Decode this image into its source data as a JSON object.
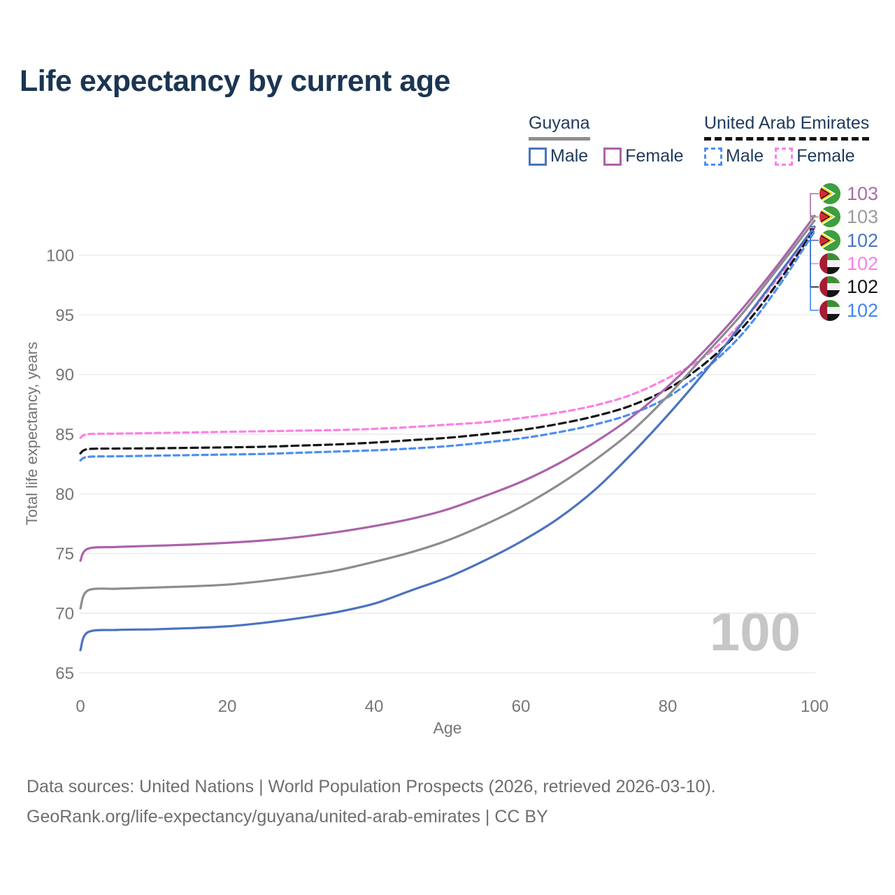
{
  "title": "Life expectancy by current age",
  "legend": {
    "guyana": {
      "label": "Guyana",
      "male_label": "Male",
      "female_label": "Female"
    },
    "uae": {
      "label": "United Arab Emirates",
      "male_label": "Male",
      "female_label": "Female"
    }
  },
  "colors": {
    "guyana_male": "#4a73c0",
    "guyana_total": "#8d8d8d",
    "guyana_female": "#ab63ab",
    "uae_male": "#4d8df5",
    "uae_total": "#141414",
    "uae_female": "#fb80e5",
    "title_text": "#1b3553",
    "legend_text": "#1e3a5c",
    "axis_text": "#757575",
    "grid_line": "#ebebeb",
    "watermark_text": "#c6c6c6"
  },
  "chart_data": {
    "type": "line",
    "title": "Life expectancy by current age",
    "xlabel": "Age",
    "ylabel": "Total life expectancy, years",
    "x_ticks": [
      0,
      20,
      40,
      60,
      80,
      100
    ],
    "y_ticks": [
      65,
      70,
      75,
      80,
      85,
      90,
      95,
      100
    ],
    "xlim": [
      0,
      100
    ],
    "ylim": [
      65,
      104
    ],
    "grid": "horizontal",
    "legend_position": "top-right",
    "ages": [
      0,
      1,
      5,
      10,
      15,
      20,
      25,
      30,
      35,
      40,
      45,
      50,
      55,
      60,
      65,
      70,
      75,
      80,
      85,
      90,
      95,
      100
    ],
    "series": [
      {
        "key": "uae_female",
        "name": "United Arab Emirates Female",
        "style": "dashed",
        "color": "#fb80e5",
        "values": [
          84.7,
          85.0,
          85.05,
          85.1,
          85.15,
          85.2,
          85.25,
          85.3,
          85.35,
          85.45,
          85.6,
          85.8,
          86.0,
          86.35,
          86.8,
          87.4,
          88.3,
          89.7,
          91.5,
          94.3,
          98.1,
          102.3
        ]
      },
      {
        "key": "uae_total",
        "name": "United Arab Emirates Both sexes",
        "style": "dashed",
        "color": "#141414",
        "values": [
          83.4,
          83.75,
          83.8,
          83.82,
          83.86,
          83.9,
          83.95,
          84.05,
          84.15,
          84.3,
          84.5,
          84.7,
          85.0,
          85.35,
          85.85,
          86.5,
          87.4,
          88.8,
          90.9,
          93.8,
          97.7,
          102.2
        ]
      },
      {
        "key": "uae_male",
        "name": "United Arab Emirates Male",
        "style": "dashed",
        "color": "#4d8df5",
        "values": [
          82.8,
          83.1,
          83.15,
          83.2,
          83.25,
          83.3,
          83.35,
          83.45,
          83.55,
          83.65,
          83.8,
          84.0,
          84.3,
          84.65,
          85.15,
          85.8,
          86.7,
          88.1,
          90.4,
          93.3,
          97.3,
          102.0
        ]
      },
      {
        "key": "guyana_male",
        "name": "Guyana Male",
        "style": "solid",
        "color": "#4a73c0",
        "values": [
          66.9,
          68.4,
          68.6,
          68.65,
          68.75,
          68.9,
          69.2,
          69.6,
          70.1,
          70.8,
          71.9,
          73.0,
          74.4,
          76.0,
          77.9,
          80.3,
          83.3,
          86.6,
          90.2,
          94.2,
          98.3,
          102.4
        ]
      },
      {
        "key": "guyana_total",
        "name": "Guyana Both sexes",
        "style": "solid",
        "color": "#8d8d8d",
        "values": [
          70.4,
          71.9,
          72.05,
          72.15,
          72.25,
          72.4,
          72.7,
          73.1,
          73.6,
          74.3,
          75.1,
          76.1,
          77.4,
          78.9,
          80.7,
          82.8,
          85.2,
          88.2,
          91.6,
          95.0,
          98.9,
          102.9
        ]
      },
      {
        "key": "guyana_female",
        "name": "Guyana Female",
        "style": "solid",
        "color": "#ab63ab",
        "values": [
          74.4,
          75.4,
          75.55,
          75.65,
          75.75,
          75.9,
          76.1,
          76.4,
          76.8,
          77.3,
          77.9,
          78.7,
          79.8,
          81.0,
          82.5,
          84.3,
          86.4,
          89.0,
          92.0,
          95.4,
          99.2,
          103.3
        ]
      }
    ]
  },
  "end_labels": [
    {
      "value": "103",
      "series": "guyana_female",
      "flag": "guyana",
      "color": "#a76fa7"
    },
    {
      "value": "103",
      "series": "guyana_total",
      "flag": "guyana",
      "color": "#9c9c9c"
    },
    {
      "value": "102",
      "series": "guyana_male",
      "flag": "guyana",
      "color": "#4a73c0"
    },
    {
      "value": "102",
      "series": "uae_female",
      "flag": "uae",
      "color": "#fb80e5"
    },
    {
      "value": "102",
      "series": "uae_total",
      "flag": "uae",
      "color": "#141414"
    },
    {
      "value": "102",
      "series": "uae_male",
      "flag": "uae",
      "color": "#4285f4"
    }
  ],
  "flag_colors": {
    "guyana": {
      "green": "#3d9f3d",
      "white": "#ffffff",
      "gold": "#f7d117",
      "black": "#1a1a1a",
      "red": "#d62839"
    },
    "uae": {
      "red": "#a61c33",
      "green": "#3d8e33",
      "white": "#f2f2f2",
      "black": "#151515"
    }
  },
  "watermark": "100",
  "footer": {
    "line1": "Data sources: United Nations | World Population Prospects (2026, retrieved 2026-03-10).",
    "line2": "GeoRank.org/life-expectancy/guyana/united-arab-emirates | CC BY"
  }
}
